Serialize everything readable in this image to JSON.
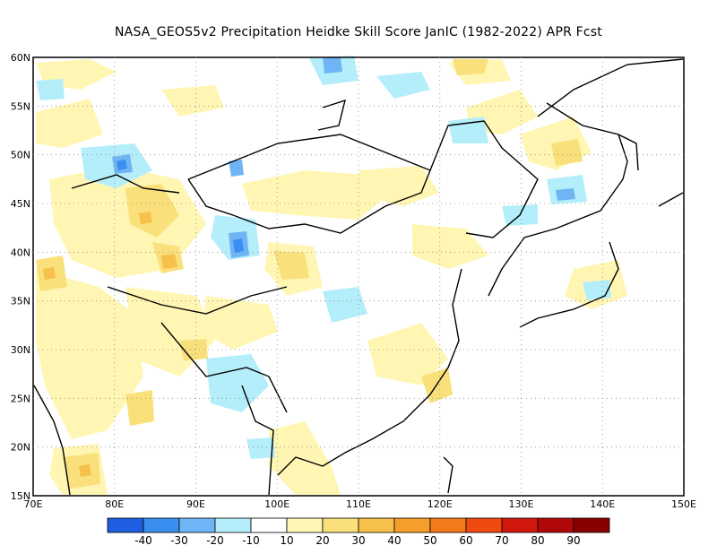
{
  "title": "NASA_GEOS5v2  Precipitation Heidke Skill Score JanIC (1982-2022) APR Fcst",
  "map": {
    "lat_labels": [
      "60N",
      "55N",
      "50N",
      "45N",
      "40N",
      "35N",
      "30N",
      "25N",
      "20N",
      "15N"
    ],
    "lon_labels": [
      "70E",
      "80E",
      "90E",
      "100E",
      "110E",
      "120E",
      "130E",
      "140E",
      "150E"
    ],
    "grid": "dotted",
    "extent": {
      "lon": [
        70,
        150
      ],
      "lat": [
        15,
        60
      ]
    }
  },
  "colorbar": {
    "labels": [
      "-40",
      "-30",
      "-20",
      "-10",
      "10",
      "20",
      "30",
      "40",
      "50",
      "60",
      "70",
      "80",
      "90"
    ],
    "colors": [
      "#1d5fe0",
      "#3a8ef0",
      "#6fb5f5",
      "#b4eefa",
      "#ffffff",
      "#fff6b4",
      "#f9e07a",
      "#f7c04a",
      "#f59f2a",
      "#f37a1a",
      "#ef4a10",
      "#d0180c",
      "#b00808",
      "#8a0000"
    ]
  }
}
